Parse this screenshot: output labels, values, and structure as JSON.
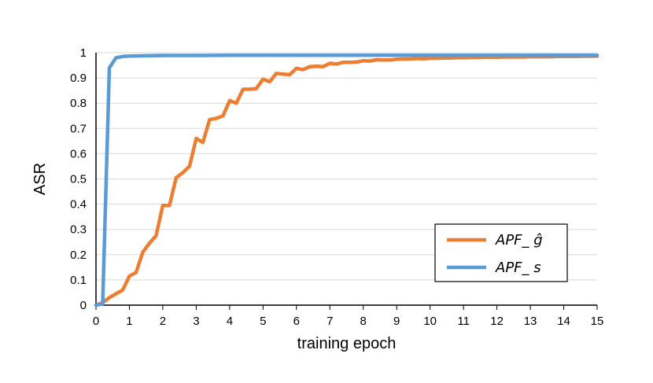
{
  "chart_data": {
    "type": "line",
    "title": "",
    "xlabel": "training epoch",
    "ylabel": "ASR",
    "xlim": [
      0,
      15
    ],
    "ylim": [
      0,
      1
    ],
    "x_ticks": [
      "0",
      "1",
      "2",
      "3",
      "4",
      "5",
      "6",
      "7",
      "8",
      "9",
      "10",
      "11",
      "12",
      "13",
      "14",
      "15"
    ],
    "y_ticks": [
      "0",
      "0.1",
      "0.2",
      "0.3",
      "0.4",
      "0.5",
      "0.6",
      "0.7",
      "0.8",
      "0.9",
      "1"
    ],
    "grid": "horizontal",
    "legend_position": "bottom-right",
    "series": [
      {
        "name": "APF_ ĝ",
        "color": "#ED7D31",
        "x": [
          0,
          0.2,
          0.4,
          0.6,
          0.8,
          1.0,
          1.2,
          1.4,
          1.6,
          1.8,
          2.0,
          2.2,
          2.4,
          2.6,
          2.8,
          3.0,
          3.2,
          3.4,
          3.6,
          3.8,
          4.0,
          4.2,
          4.4,
          4.6,
          4.8,
          5.0,
          5.2,
          5.4,
          5.6,
          5.8,
          6.0,
          6.2,
          6.4,
          6.6,
          6.8,
          7.0,
          7.2,
          7.4,
          7.6,
          7.8,
          8.0,
          8.2,
          8.4,
          8.6,
          8.8,
          9.0,
          9.2,
          9.4,
          9.6,
          9.8,
          10.0,
          10.2,
          10.4,
          10.6,
          10.8,
          11.0,
          11.2,
          11.4,
          11.6,
          11.8,
          12.0,
          12.2,
          12.4,
          12.6,
          12.8,
          13.0,
          13.2,
          13.4,
          13.6,
          13.8,
          14.0,
          14.2,
          14.4,
          14.6,
          14.8,
          15.0
        ],
        "values": [
          0.0,
          0.01,
          0.03,
          0.045,
          0.06,
          0.115,
          0.13,
          0.21,
          0.245,
          0.275,
          0.395,
          0.395,
          0.505,
          0.525,
          0.55,
          0.66,
          0.645,
          0.735,
          0.74,
          0.75,
          0.81,
          0.8,
          0.855,
          0.855,
          0.858,
          0.895,
          0.885,
          0.918,
          0.915,
          0.913,
          0.938,
          0.933,
          0.945,
          0.946,
          0.945,
          0.958,
          0.955,
          0.962,
          0.962,
          0.963,
          0.968,
          0.967,
          0.972,
          0.971,
          0.971,
          0.974,
          0.975,
          0.975,
          0.977,
          0.976,
          0.978,
          0.978,
          0.979,
          0.979,
          0.98,
          0.98,
          0.981,
          0.981,
          0.982,
          0.982,
          0.982,
          0.983,
          0.983,
          0.983,
          0.983,
          0.984,
          0.984,
          0.984,
          0.984,
          0.985,
          0.985,
          0.985,
          0.985,
          0.986,
          0.986,
          0.986
        ]
      },
      {
        "name": "APF_ s",
        "color": "#5B9BD5",
        "x": [
          0,
          0.2,
          0.4,
          0.6,
          0.8,
          1.0,
          1.5,
          2.0,
          3.0,
          4.0,
          5.0,
          6.0,
          7.0,
          8.0,
          9.0,
          10.0,
          11.0,
          12.0,
          13.0,
          14.0,
          15.0
        ],
        "values": [
          0.0,
          0.005,
          0.94,
          0.98,
          0.985,
          0.987,
          0.988,
          0.989,
          0.989,
          0.99,
          0.99,
          0.99,
          0.99,
          0.99,
          0.99,
          0.99,
          0.99,
          0.99,
          0.99,
          0.99,
          0.99
        ]
      }
    ]
  }
}
